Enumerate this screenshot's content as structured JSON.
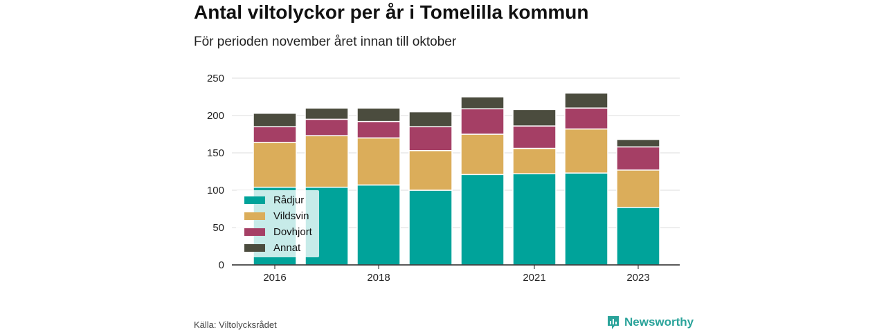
{
  "title": "Antal viltolyckor per år i Tomelilla kommun",
  "subtitle": "För perioden november året innan till oktober",
  "source": "Källa: Viltolycksrådet",
  "brand": {
    "name": "Newsworthy",
    "icon": "newsworthy-logo-icon",
    "color": "#2aa39a"
  },
  "chart_data": {
    "type": "bar",
    "stacked": true,
    "categories": [
      "2016",
      "2017",
      "2018",
      "2019",
      "2020",
      "2021",
      "2022",
      "2023"
    ],
    "x_tick_labels": [
      "2016",
      "",
      "2018",
      "",
      "",
      "2021",
      "",
      "2023"
    ],
    "y_ticks": [
      0,
      50,
      100,
      150,
      200,
      250
    ],
    "ylim": [
      0,
      250
    ],
    "grid": true,
    "legend_position": "bottom-left",
    "series": [
      {
        "name": "Rådjur",
        "color": "#00a39a",
        "values": [
          104,
          104,
          107,
          100,
          121,
          122,
          123,
          77
        ]
      },
      {
        "name": "Vildsvin",
        "color": "#dbad5a",
        "values": [
          60,
          69,
          63,
          53,
          54,
          34,
          59,
          50
        ]
      },
      {
        "name": "Dovhjort",
        "color": "#a53f65",
        "values": [
          21,
          22,
          22,
          32,
          34,
          30,
          28,
          31
        ]
      },
      {
        "name": "Annat",
        "color": "#4b4c3e",
        "values": [
          18,
          15,
          18,
          20,
          16,
          22,
          20,
          10
        ]
      }
    ]
  }
}
